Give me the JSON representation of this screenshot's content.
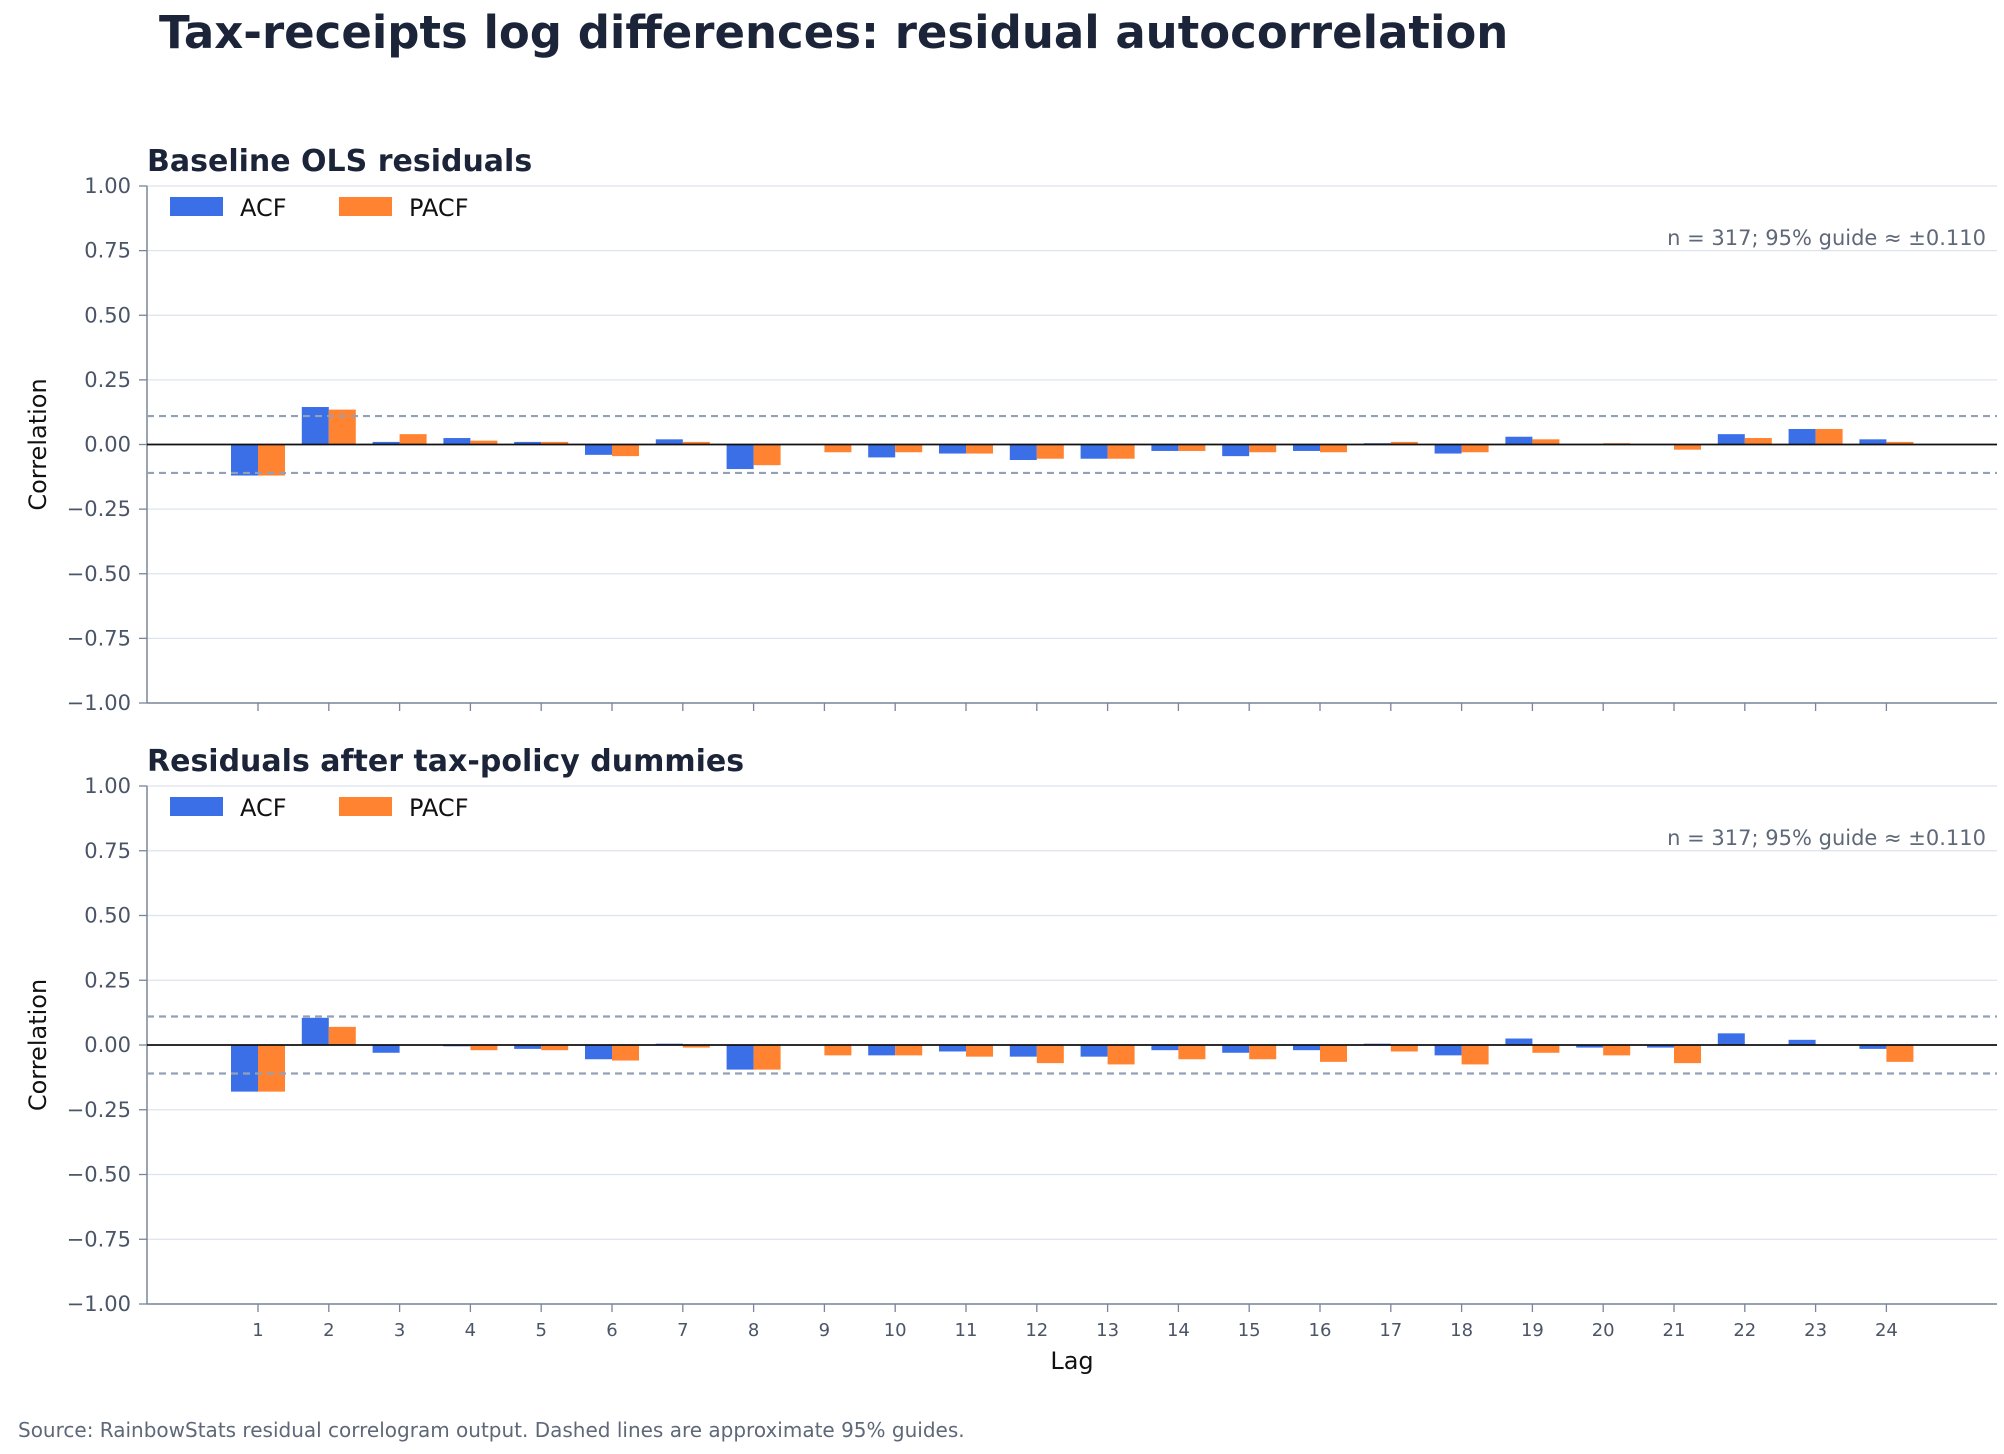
{
  "title": "Tax-receipts log differences: residual autocorrelation",
  "source": "Source: RainbowStats residual correlogram output. Dashed lines are approximate 95% guides.",
  "colors": {
    "acf": "#3b6fe8",
    "pacf": "#ff8331",
    "guide": "#93a1b8",
    "grid": "#dde3ee",
    "zero": "#111111"
  },
  "chart_data": [
    {
      "type": "bar",
      "title": "Baseline OLS residuals",
      "xlabel": "",
      "ylabel": "Correlation",
      "ylim": [
        -1,
        1
      ],
      "yticks": [
        -1,
        -0.75,
        -0.5,
        -0.25,
        0,
        0.25,
        0.5,
        0.75,
        1
      ],
      "ytick_labels": [
        "−1.00",
        "−0.75",
        "−0.50",
        "−0.25",
        "0.00",
        "0.25",
        "0.50",
        "0.75",
        "1.00"
      ],
      "grid": true,
      "legend": "top-left",
      "categories": [
        1,
        2,
        3,
        4,
        5,
        6,
        7,
        8,
        9,
        10,
        11,
        12,
        13,
        14,
        15,
        16,
        17,
        18,
        19,
        20,
        21,
        22,
        23,
        24
      ],
      "series": [
        {
          "name": "ACF",
          "values": [
            -0.12,
            0.145,
            0.01,
            0.025,
            0.01,
            -0.04,
            0.02,
            -0.095,
            0.0,
            -0.05,
            -0.035,
            -0.06,
            -0.055,
            -0.025,
            -0.045,
            -0.025,
            0.005,
            -0.035,
            0.03,
            0.0,
            0.0,
            0.04,
            0.06,
            0.02
          ]
        },
        {
          "name": "PACF",
          "values": [
            -0.12,
            0.135,
            0.04,
            0.015,
            0.01,
            -0.045,
            0.01,
            -0.08,
            -0.03,
            -0.03,
            -0.035,
            -0.055,
            -0.055,
            -0.025,
            -0.03,
            -0.03,
            0.01,
            -0.03,
            0.02,
            0.005,
            -0.02,
            0.025,
            0.06,
            0.01
          ]
        }
      ],
      "guide": 0.11,
      "annotation": "n = 317; 95% guide ≈ ±0.110"
    },
    {
      "type": "bar",
      "title": "Residuals after tax-policy dummies",
      "xlabel": "Lag",
      "ylabel": "Correlation",
      "ylim": [
        -1,
        1
      ],
      "yticks": [
        -1,
        -0.75,
        -0.5,
        -0.25,
        0,
        0.25,
        0.5,
        0.75,
        1
      ],
      "ytick_labels": [
        "−1.00",
        "−0.75",
        "−0.50",
        "−0.25",
        "0.00",
        "0.25",
        "0.50",
        "0.75",
        "1.00"
      ],
      "grid": true,
      "legend": "top-left",
      "categories": [
        1,
        2,
        3,
        4,
        5,
        6,
        7,
        8,
        9,
        10,
        11,
        12,
        13,
        14,
        15,
        16,
        17,
        18,
        19,
        20,
        21,
        22,
        23,
        24
      ],
      "series": [
        {
          "name": "ACF",
          "values": [
            -0.18,
            0.105,
            -0.03,
            -0.005,
            -0.015,
            -0.055,
            0.005,
            -0.095,
            0.0,
            -0.04,
            -0.025,
            -0.045,
            -0.045,
            -0.02,
            -0.03,
            -0.02,
            0.005,
            -0.04,
            0.025,
            -0.01,
            -0.01,
            0.045,
            0.02,
            -0.015
          ]
        },
        {
          "name": "PACF",
          "values": [
            -0.18,
            0.07,
            0.0,
            -0.02,
            -0.02,
            -0.06,
            -0.01,
            -0.095,
            -0.04,
            -0.04,
            -0.045,
            -0.07,
            -0.075,
            -0.055,
            -0.055,
            -0.065,
            -0.025,
            -0.075,
            -0.03,
            -0.04,
            -0.07,
            0.0,
            0.0,
            -0.065
          ]
        }
      ],
      "guide": 0.11,
      "annotation": "n = 317; 95% guide ≈ ±0.110"
    }
  ]
}
